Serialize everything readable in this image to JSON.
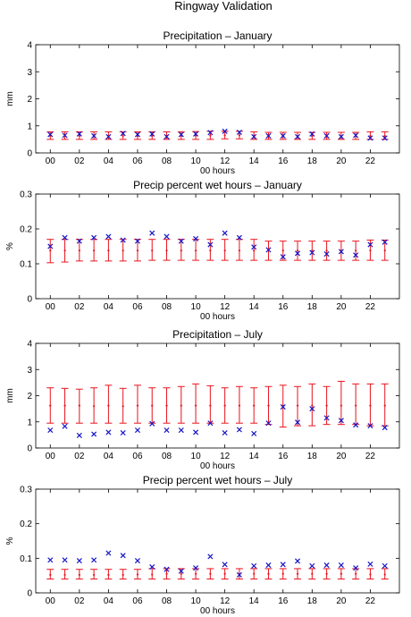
{
  "title": "Ringway Validation",
  "chart_data": [
    {
      "type": "errorbar+scatter",
      "title": "Precipitation – January",
      "xlabel": "00 hours",
      "ylabel": "mm",
      "ylim": [
        0,
        4
      ],
      "yticks": [
        "0",
        "1",
        "2",
        "3",
        "4"
      ],
      "xlim": [
        -1,
        24
      ],
      "xticks": [
        "00",
        "02",
        "04",
        "06",
        "08",
        "10",
        "12",
        "14",
        "16",
        "18",
        "20",
        "22"
      ],
      "xtick_values": [
        0,
        2,
        4,
        6,
        8,
        10,
        12,
        14,
        16,
        18,
        20,
        22
      ],
      "x": [
        0,
        1,
        2,
        3,
        4,
        5,
        6,
        7,
        8,
        9,
        10,
        11,
        12,
        13,
        14,
        15,
        16,
        17,
        18,
        19,
        20,
        21,
        22,
        23
      ],
      "series": [
        {
          "mean": [
            0.63,
            0.63,
            0.63,
            0.63,
            0.63,
            0.63,
            0.63,
            0.63,
            0.63,
            0.63,
            0.64,
            0.64,
            0.65,
            0.65,
            0.64,
            0.62,
            0.62,
            0.62,
            0.62,
            0.62,
            0.62,
            0.62,
            0.63,
            0.63
          ],
          "lower": [
            0.5,
            0.5,
            0.5,
            0.5,
            0.5,
            0.5,
            0.5,
            0.5,
            0.5,
            0.5,
            0.5,
            0.5,
            0.52,
            0.52,
            0.5,
            0.5,
            0.5,
            0.5,
            0.5,
            0.5,
            0.5,
            0.5,
            0.5,
            0.5
          ],
          "upper": [
            0.78,
            0.78,
            0.78,
            0.78,
            0.78,
            0.78,
            0.78,
            0.78,
            0.78,
            0.78,
            0.79,
            0.8,
            0.8,
            0.8,
            0.78,
            0.76,
            0.76,
            0.76,
            0.76,
            0.76,
            0.76,
            0.76,
            0.78,
            0.78
          ],
          "color": "#e8141e"
        },
        {
          "marker": "x",
          "values": [
            0.68,
            0.65,
            0.7,
            0.63,
            0.6,
            0.72,
            0.68,
            0.7,
            0.6,
            0.68,
            0.7,
            0.75,
            0.8,
            0.76,
            0.6,
            0.63,
            0.63,
            0.6,
            0.7,
            0.63,
            0.6,
            0.65,
            0.55,
            0.55
          ],
          "color": "#1414c8"
        }
      ]
    },
    {
      "type": "errorbar+scatter",
      "title": "Precip percent wet hours – January",
      "xlabel": "00 hours",
      "ylabel": "%",
      "ylim": [
        0,
        0.3
      ],
      "yticks": [
        "0",
        "0.1",
        "0.2",
        "0.3"
      ],
      "xlim": [
        -1,
        24
      ],
      "xticks": [
        "00",
        "02",
        "04",
        "06",
        "08",
        "10",
        "12",
        "14",
        "16",
        "18",
        "20",
        "22"
      ],
      "xtick_values": [
        0,
        2,
        4,
        6,
        8,
        10,
        12,
        14,
        16,
        18,
        20,
        22
      ],
      "x": [
        0,
        1,
        2,
        3,
        4,
        5,
        6,
        7,
        8,
        9,
        10,
        11,
        12,
        13,
        14,
        15,
        16,
        17,
        18,
        19,
        20,
        21,
        22,
        23
      ],
      "series": [
        {
          "mean": [
            0.138,
            0.138,
            0.138,
            0.138,
            0.138,
            0.138,
            0.138,
            0.138,
            0.138,
            0.138,
            0.138,
            0.138,
            0.138,
            0.138,
            0.138,
            0.138,
            0.138,
            0.138,
            0.138,
            0.138,
            0.138,
            0.138,
            0.138,
            0.138
          ],
          "lower": [
            0.103,
            0.105,
            0.108,
            0.108,
            0.108,
            0.108,
            0.108,
            0.11,
            0.11,
            0.11,
            0.11,
            0.11,
            0.11,
            0.11,
            0.11,
            0.11,
            0.11,
            0.11,
            0.11,
            0.11,
            0.11,
            0.11,
            0.11,
            0.11
          ],
          "upper": [
            0.17,
            0.17,
            0.17,
            0.17,
            0.17,
            0.17,
            0.17,
            0.17,
            0.17,
            0.17,
            0.17,
            0.17,
            0.17,
            0.17,
            0.17,
            0.165,
            0.165,
            0.165,
            0.165,
            0.165,
            0.165,
            0.165,
            0.168,
            0.168
          ],
          "color": "#e8141e"
        },
        {
          "marker": "x",
          "values": [
            0.15,
            0.175,
            0.165,
            0.175,
            0.178,
            0.168,
            0.165,
            0.188,
            0.178,
            0.165,
            0.172,
            0.155,
            0.188,
            0.175,
            0.148,
            0.14,
            0.12,
            0.13,
            0.132,
            0.128,
            0.135,
            0.125,
            0.155,
            0.162
          ],
          "color": "#1414c8"
        }
      ]
    },
    {
      "type": "errorbar+scatter",
      "title": "Precipitation – July",
      "xlabel": "00 hours",
      "ylabel": "mm",
      "ylim": [
        0,
        4
      ],
      "yticks": [
        "0",
        "1",
        "2",
        "3",
        "4"
      ],
      "xlim": [
        -1,
        24
      ],
      "xticks": [
        "00",
        "02",
        "04",
        "06",
        "08",
        "10",
        "12",
        "14",
        "16",
        "18",
        "20",
        "22"
      ],
      "xtick_values": [
        0,
        2,
        4,
        6,
        8,
        10,
        12,
        14,
        16,
        18,
        20,
        22
      ],
      "x": [
        0,
        1,
        2,
        3,
        4,
        5,
        6,
        7,
        8,
        9,
        10,
        11,
        12,
        13,
        14,
        15,
        16,
        17,
        18,
        19,
        20,
        21,
        22,
        23
      ],
      "series": [
        {
          "mean": [
            1.62,
            1.62,
            1.62,
            1.6,
            1.62,
            1.6,
            1.62,
            1.62,
            1.62,
            1.62,
            1.62,
            1.62,
            1.62,
            1.62,
            1.62,
            1.62,
            1.62,
            1.62,
            1.62,
            1.62,
            1.62,
            1.62,
            1.62,
            1.62
          ],
          "lower": [
            0.95,
            0.95,
            0.95,
            0.95,
            0.95,
            0.95,
            0.95,
            0.95,
            0.95,
            0.95,
            0.95,
            0.95,
            0.95,
            0.95,
            0.95,
            0.9,
            0.8,
            0.85,
            0.85,
            0.9,
            0.9,
            0.9,
            0.85,
            0.85
          ],
          "upper": [
            2.3,
            2.28,
            2.25,
            2.3,
            2.4,
            2.28,
            2.4,
            2.3,
            2.3,
            2.35,
            2.45,
            2.38,
            2.3,
            2.35,
            2.3,
            2.35,
            2.4,
            2.35,
            2.45,
            2.35,
            2.55,
            2.45,
            2.45,
            2.45
          ],
          "color": "#e8141e"
        },
        {
          "marker": "x",
          "values": [
            0.68,
            0.83,
            0.48,
            0.53,
            0.6,
            0.58,
            0.68,
            0.93,
            0.68,
            0.68,
            0.6,
            0.95,
            0.58,
            0.7,
            0.55,
            0.95,
            1.57,
            0.98,
            1.5,
            1.15,
            1.05,
            0.88,
            0.85,
            0.78
          ],
          "color": "#1414c8"
        }
      ]
    },
    {
      "type": "errorbar+scatter",
      "title": "Precip percent wet hours – July",
      "xlabel": "00 hours",
      "ylabel": "%",
      "ylim": [
        0,
        0.3
      ],
      "yticks": [
        "0",
        "0.1",
        "0.2",
        "0.3"
      ],
      "xlim": [
        -1,
        24
      ],
      "xticks": [
        "00",
        "02",
        "04",
        "06",
        "08",
        "10",
        "12",
        "14",
        "16",
        "18",
        "20",
        "22"
      ],
      "xtick_values": [
        0,
        2,
        4,
        6,
        8,
        10,
        12,
        14,
        16,
        18,
        20,
        22
      ],
      "x": [
        0,
        1,
        2,
        3,
        4,
        5,
        6,
        7,
        8,
        9,
        10,
        11,
        12,
        13,
        14,
        15,
        16,
        17,
        18,
        19,
        20,
        21,
        22,
        23
      ],
      "series": [
        {
          "mean": [
            0.052,
            0.052,
            0.052,
            0.052,
            0.052,
            0.052,
            0.053,
            0.053,
            0.055,
            0.055,
            0.055,
            0.055,
            0.055,
            0.055,
            0.055,
            0.055,
            0.055,
            0.055,
            0.055,
            0.055,
            0.055,
            0.055,
            0.053,
            0.053
          ],
          "lower": [
            0.04,
            0.04,
            0.04,
            0.04,
            0.04,
            0.04,
            0.04,
            0.04,
            0.04,
            0.04,
            0.04,
            0.04,
            0.04,
            0.04,
            0.04,
            0.04,
            0.04,
            0.04,
            0.04,
            0.04,
            0.04,
            0.04,
            0.04,
            0.04
          ],
          "upper": [
            0.068,
            0.068,
            0.068,
            0.068,
            0.068,
            0.068,
            0.068,
            0.07,
            0.07,
            0.07,
            0.07,
            0.07,
            0.07,
            0.07,
            0.07,
            0.07,
            0.07,
            0.07,
            0.07,
            0.07,
            0.07,
            0.07,
            0.07,
            0.07
          ],
          "color": "#e8141e"
        },
        {
          "marker": "x",
          "values": [
            0.095,
            0.095,
            0.093,
            0.095,
            0.115,
            0.108,
            0.093,
            0.075,
            0.068,
            0.063,
            0.072,
            0.105,
            0.082,
            0.052,
            0.078,
            0.08,
            0.082,
            0.092,
            0.078,
            0.08,
            0.08,
            0.072,
            0.083,
            0.078
          ],
          "color": "#1414c8"
        }
      ]
    }
  ]
}
